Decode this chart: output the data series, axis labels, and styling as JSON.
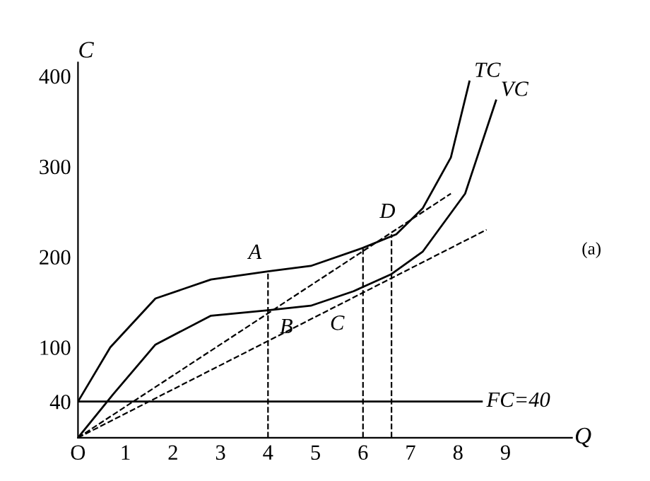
{
  "chart_data": {
    "type": "line",
    "xlabel": "Q",
    "ylabel": "C",
    "xlim": [
      0,
      10.4
    ],
    "ylim": [
      0,
      415
    ],
    "xticks": [
      {
        "value": 0,
        "label": "O"
      },
      1,
      2,
      3,
      4,
      5,
      6,
      7,
      8,
      9
    ],
    "yticks": [
      40,
      100,
      200,
      300,
      400
    ],
    "grid": false,
    "legend": false,
    "marker": "none",
    "series": [
      {
        "name": "TC",
        "color": "#000000",
        "line_style": "solid",
        "x": [
          0,
          0.68,
          1.63,
          2.8,
          4,
          4.9,
          6,
          6.7,
          7.26,
          7.85,
          8.24
        ],
        "values": [
          40,
          100,
          154,
          175,
          184,
          190,
          210,
          225,
          254,
          310,
          394
        ]
      },
      {
        "name": "VC",
        "color": "#000000",
        "line_style": "solid",
        "x": [
          0,
          0.74,
          1.63,
          2.8,
          4,
          4.9,
          5.8,
          6.6,
          7.26,
          8.15,
          8.8
        ],
        "values": [
          0,
          48,
          103,
          135,
          141,
          146,
          162,
          181,
          206,
          270,
          373
        ]
      },
      {
        "name": "FC=40",
        "color": "#000000",
        "line_style": "solid",
        "x": [
          0,
          8.5
        ],
        "values": [
          40,
          40
        ]
      },
      {
        "color": "#000000",
        "line_style": "dashed",
        "x": [
          0,
          7.85
        ],
        "values": [
          0,
          270
        ]
      },
      {
        "color": "#000000",
        "line_style": "dashed",
        "x": [
          0,
          8.6
        ],
        "values": [
          0,
          230
        ]
      },
      {
        "color": "#000000",
        "line_style": "dashed",
        "x": [
          4,
          4
        ],
        "values": [
          0,
          184
        ]
      },
      {
        "color": "#000000",
        "line_style": "dashed",
        "x": [
          6,
          6
        ],
        "values": [
          0,
          210
        ]
      },
      {
        "color": "#000000",
        "line_style": "dashed",
        "x": [
          6.6,
          6.6
        ],
        "values": [
          0,
          225
        ]
      }
    ],
    "annotations": [
      {
        "text": "A",
        "x": 4,
        "y": 184
      },
      {
        "text": "B",
        "x": 4,
        "y": 141
      },
      {
        "text": "C",
        "x": 5.8,
        "y": 162
      },
      {
        "text": "D",
        "x": 6.6,
        "y": 225
      },
      "(a)"
    ]
  }
}
